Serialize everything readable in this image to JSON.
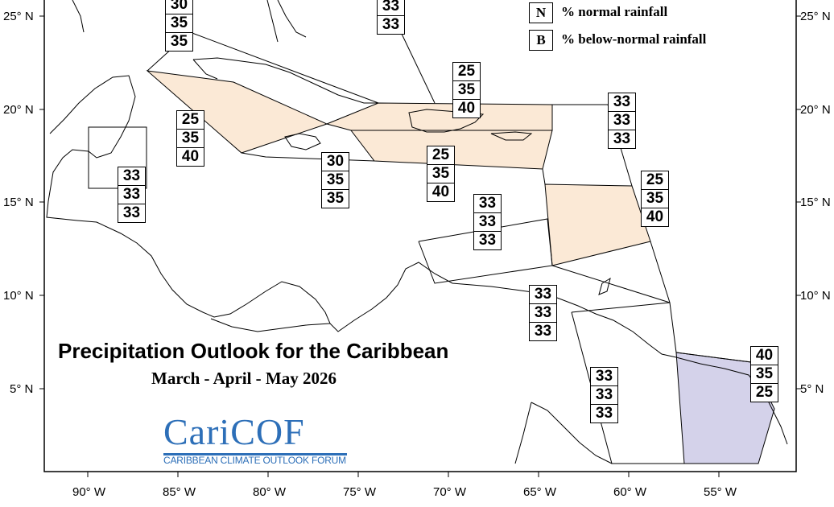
{
  "title": "Precipitation Outlook for the Caribbean",
  "subtitle": "March - April - May 2026",
  "logo": {
    "name": "CariCOF",
    "tagline": "CARIBBEAN CLIMATE OUTLOOK FORUM"
  },
  "legend": [
    {
      "key": "N",
      "label": "% normal rainfall"
    },
    {
      "key": "B",
      "label": "% below-normal rainfall"
    }
  ],
  "axes": {
    "longitude_labels": [
      "90° W",
      "85° W",
      "80° W",
      "75° W",
      "70° W",
      "65° W",
      "60° W",
      "55° W"
    ],
    "latitude_labels": [
      "25° N",
      "20° N",
      "15° N",
      "10° N",
      "5° N"
    ]
  },
  "colors": {
    "below_normal_shade": "#fbe9d6",
    "above_normal_shade": "#d4d2ea",
    "logo_blue": "#2d6fb8"
  },
  "regions": [
    {
      "id": "bahamas-north",
      "values": [
        "30",
        "35",
        "35"
      ]
    },
    {
      "id": "turks-caicos",
      "values": [
        "33",
        "33"
      ]
    },
    {
      "id": "cuba-hispaniola-east",
      "values": [
        "25",
        "35",
        "40"
      ]
    },
    {
      "id": "cayman-cuba-west",
      "values": [
        "25",
        "35",
        "40"
      ]
    },
    {
      "id": "jamaica",
      "values": [
        "30",
        "35",
        "35"
      ]
    },
    {
      "id": "puerto-rico-south",
      "values": [
        "25",
        "35",
        "40"
      ]
    },
    {
      "id": "leeward-north",
      "values": [
        "33",
        "33",
        "33"
      ]
    },
    {
      "id": "windward",
      "values": [
        "25",
        "35",
        "40"
      ]
    },
    {
      "id": "belize",
      "values": [
        "33",
        "33",
        "33"
      ]
    },
    {
      "id": "abc-islands",
      "values": [
        "33",
        "33",
        "33"
      ]
    },
    {
      "id": "trinidad",
      "values": [
        "33",
        "33",
        "33"
      ]
    },
    {
      "id": "guyana",
      "values": [
        "33",
        "33",
        "33"
      ]
    },
    {
      "id": "suriname-french-guiana",
      "values": [
        "40",
        "35",
        "25"
      ]
    }
  ]
}
